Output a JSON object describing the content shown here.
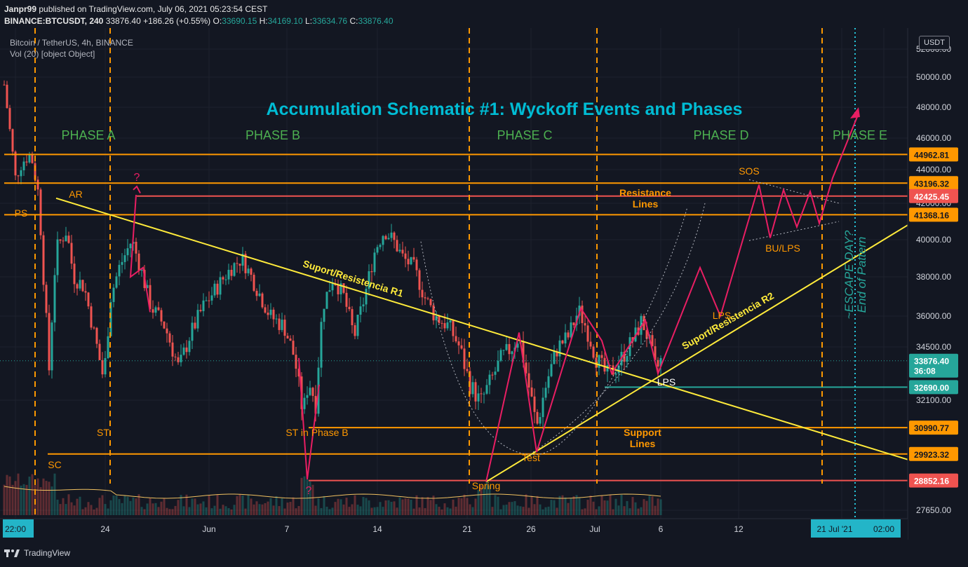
{
  "header": {
    "author": "Janpr99",
    "published": "published on TradingView.com, July 06, 2021 05:23:54 CEST",
    "symbol_line_prefix": "BINANCE:BTCUSDT, 240",
    "last_price": "33876.40",
    "change": "+186.26 (+0.55%)",
    "o_label": "O:",
    "o_value": "33690.15",
    "h_label": "H:",
    "h_value": "34169.10",
    "l_label": "L:",
    "l_value": "33634.76",
    "c_label": "C:",
    "c_value": "33876.40"
  },
  "legend": {
    "symbol": "Bitcoin / TetherUS, 4h, BINANCE",
    "volume": "Vol (20) [object Object]"
  },
  "currency_button": "USDT",
  "footer": {
    "brand": "TradingView"
  },
  "chart_data": {
    "type": "candlestick",
    "title": "Accumulation Schematic #1: Wyckoff Events and Phases",
    "y_ticks": [
      52000,
      50000,
      48000,
      46000,
      44000,
      42000,
      40000,
      38000,
      36000,
      34500,
      32100,
      27650
    ],
    "y_tick_labels": [
      "52000.00",
      "50000.00",
      "48000.00",
      "46000.00",
      "44000.00",
      "42000.00",
      "40000.00",
      "38000.00",
      "36000.00",
      "34500.00",
      "32100.00",
      "27650.00"
    ],
    "x_tick_labels": [
      "22:00",
      "24",
      "Jun",
      "7",
      "14",
      "21",
      "26",
      "Jul",
      "6",
      "12",
      "21 Jul '21",
      "02:00"
    ],
    "horizontal_levels": [
      {
        "value": 44962.81,
        "label": "44962.81",
        "color": "#ff9800"
      },
      {
        "value": 43196.32,
        "label": "43196.32",
        "color": "#ff9800"
      },
      {
        "value": 42425.45,
        "label": "42425.45",
        "color": "#ef5350"
      },
      {
        "value": 41368.16,
        "label": "41368.16",
        "color": "#ff9800"
      },
      {
        "value": 33876.4,
        "label": "33876.40",
        "sublabel": "36:08",
        "color": "#26a69a"
      },
      {
        "value": 32690.0,
        "label": "32690.00",
        "color": "#26a69a"
      },
      {
        "value": 30990.77,
        "label": "30990.77",
        "color": "#ff9800"
      },
      {
        "value": 29923.32,
        "label": "29923.32",
        "color": "#ff9800"
      },
      {
        "value": 28852.16,
        "label": "28852.16",
        "color": "#ef5350"
      }
    ],
    "phases": [
      "PHASE A",
      "PHASE B",
      "PHASE C",
      "PHASE D",
      "PHASE E"
    ],
    "events": [
      "PS",
      "AR",
      "?",
      "SC",
      "ST",
      "ST in Phase B",
      "?",
      "Spring",
      "Test",
      "LPS",
      "LPS",
      "SOS",
      "BU/LPS"
    ],
    "annotations": {
      "r1": "Suport/Resistencia R1",
      "r2": "Suport/Resistencia R2",
      "resistance": [
        "Resistance",
        "Lines"
      ],
      "support": [
        "Support",
        "Lines"
      ],
      "escape": [
        "~ESCAPE DAY?",
        "End of Pattern"
      ]
    },
    "colors": {
      "up": "#26a69a",
      "down": "#ef5350",
      "level": "#ff9800",
      "trend": "#ffeb3b",
      "path": "#e91e63",
      "title": "#00bcd4",
      "phase": "#4caf50"
    }
  }
}
